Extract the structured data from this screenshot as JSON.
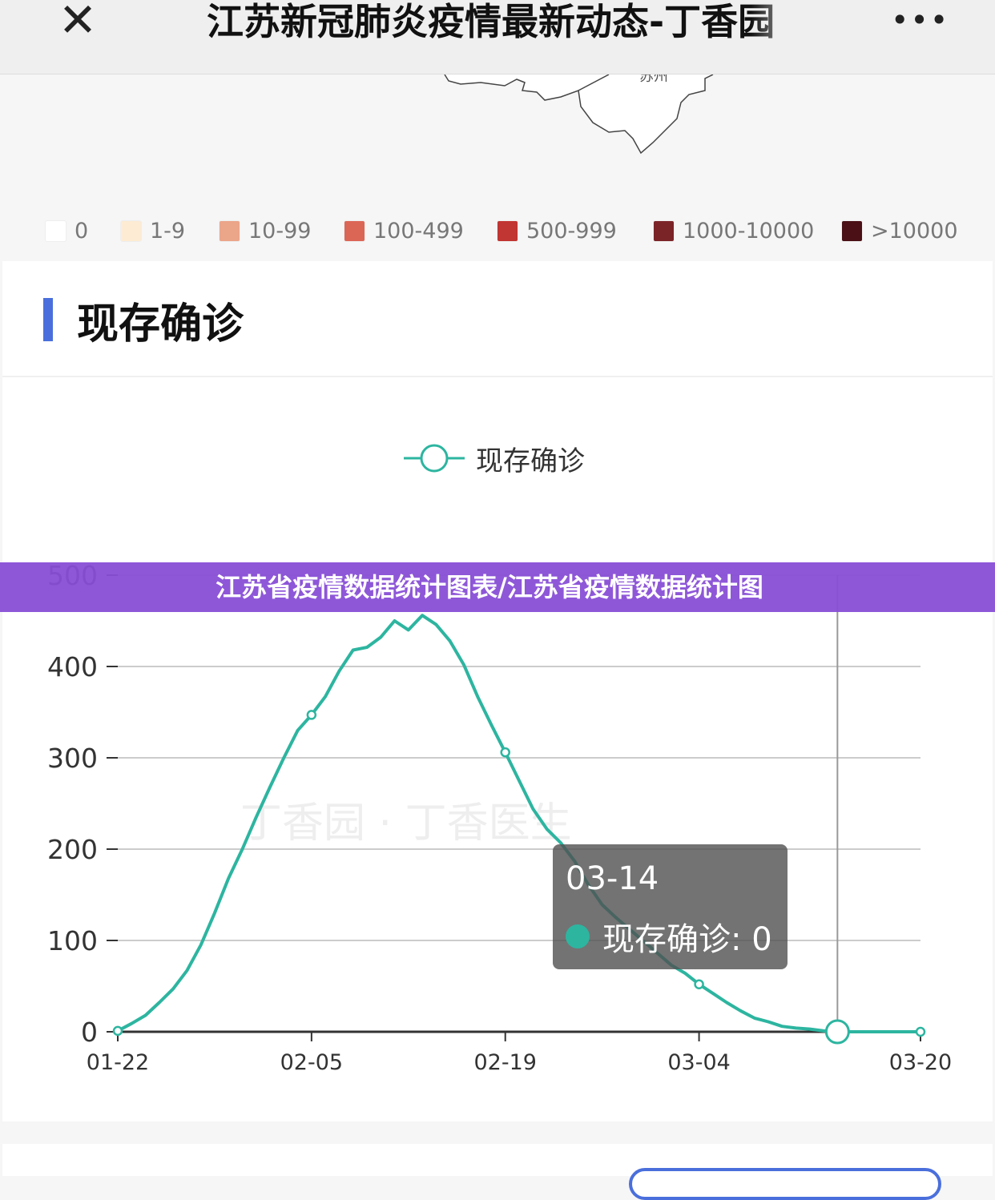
{
  "nav": {
    "close_icon": "close-icon",
    "title": "江苏新冠肺炎疫情最新动态-丁香园",
    "more_icon": "more-dots-icon"
  },
  "map": {
    "label": "苏州",
    "legend": [
      {
        "label": "0",
        "color": "#ffffff"
      },
      {
        "label": "1-9",
        "color": "#fdebd3"
      },
      {
        "label": "10-99",
        "color": "#eba589"
      },
      {
        "label": "100-499",
        "color": "#dc6656"
      },
      {
        "label": "500-999",
        "color": "#c13532"
      },
      {
        "label": "1000-10000",
        "color": "#7b2428"
      },
      {
        "label": ">10000",
        "color": "#4a1015"
      }
    ]
  },
  "section": {
    "title": "现存确诊",
    "accent": "#4a6fdc"
  },
  "banner": {
    "text": "江苏省疫情数据统计图表/江苏省疫情数据统计图"
  },
  "watermark": "丁香园 · 丁香医生",
  "tooltip": {
    "date": "03-14",
    "series": "现存确诊",
    "value": "0",
    "text": "现存确诊: 0"
  },
  "chart_data": {
    "type": "line",
    "title": "",
    "xlabel": "",
    "ylabel": "",
    "ylim": [
      0,
      500
    ],
    "yticks": [
      "0",
      "100",
      "200",
      "300",
      "400",
      "500"
    ],
    "xticks": [
      "01-22",
      "02-05",
      "02-19",
      "03-04",
      "03-20"
    ],
    "grid": true,
    "legend_position": "top-center",
    "color": "#2db5a0",
    "x_start": "01-22",
    "x_end": "03-20",
    "series": [
      {
        "name": "现存确诊",
        "values": [
          1,
          9,
          18,
          32,
          47,
          67,
          95,
          130,
          168,
          200,
          235,
          268,
          300,
          330,
          347,
          367,
          395,
          418,
          421,
          432,
          450,
          440,
          456,
          446,
          428,
          402,
          367,
          336,
          306,
          275,
          244,
          222,
          207,
          187,
          161,
          139,
          125,
          112,
          99,
          86,
          73,
          64,
          52,
          42,
          32,
          23,
          15,
          11,
          6,
          4,
          3,
          1,
          0,
          0,
          0,
          0,
          0,
          0,
          0
        ]
      }
    ],
    "highlighted": "03-14"
  }
}
